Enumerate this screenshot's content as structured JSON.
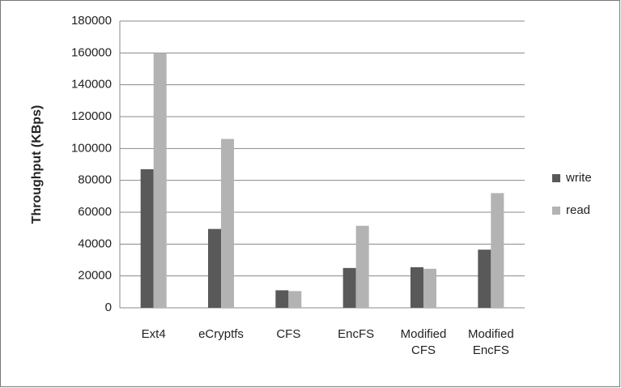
{
  "chart_data": {
    "type": "bar",
    "y_label": "Throughput (KBps)",
    "categories": [
      "Ext4",
      "eCryptfs",
      "CFS",
      "EncFS",
      "Modified CFS",
      "Modified EncFS"
    ],
    "series": [
      {
        "name": "write",
        "color": "#595959",
        "values": [
          87000,
          49500,
          11000,
          25000,
          25500,
          36500
        ]
      },
      {
        "name": "read",
        "color": "#b3b3b3",
        "values": [
          160000,
          106000,
          10500,
          51500,
          24500,
          72000
        ]
      }
    ],
    "ylim": [
      0,
      180000
    ],
    "yticks": [
      0,
      20000,
      40000,
      60000,
      80000,
      100000,
      120000,
      140000,
      160000,
      180000
    ],
    "grid": true,
    "legend": "right"
  }
}
